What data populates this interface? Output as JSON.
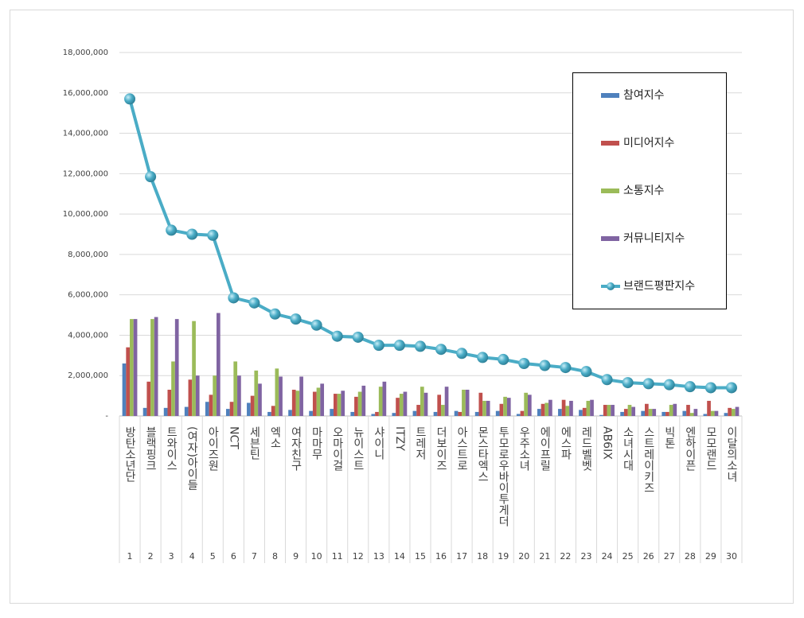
{
  "chart_data": {
    "type": "combo",
    "categories": [
      "방탄소년단",
      "블랙핑크",
      "트와이스",
      "(여자)아이들",
      "아이즈원",
      "NCT",
      "세븐틴",
      "엑소",
      "여자친구",
      "마마무",
      "오마이걸",
      "뉴이스트",
      "샤이니",
      "ITZY",
      "트레저",
      "더보이즈",
      "아스트로",
      "몬스타엑스",
      "투모로우바이투게더",
      "우주소녀",
      "에이프릴",
      "에스파",
      "레드벨벳",
      "AB6IX",
      "소녀시대",
      "스트레이키즈",
      "빅톤",
      "엔하이픈",
      "모모랜드",
      "이달의소녀"
    ],
    "ranks": [
      1,
      2,
      3,
      4,
      5,
      6,
      7,
      8,
      9,
      10,
      11,
      12,
      13,
      14,
      15,
      16,
      17,
      18,
      19,
      20,
      21,
      22,
      23,
      24,
      25,
      26,
      27,
      28,
      29,
      30
    ],
    "series": [
      {
        "name": "참여지수",
        "type": "bar",
        "color": "#4f81bd",
        "values": [
          2600000,
          400000,
          400000,
          450000,
          700000,
          350000,
          650000,
          200000,
          300000,
          250000,
          350000,
          200000,
          100000,
          150000,
          250000,
          200000,
          250000,
          200000,
          250000,
          100000,
          350000,
          350000,
          300000,
          50000,
          200000,
          250000,
          200000,
          250000,
          100000,
          150000
        ]
      },
      {
        "name": "미디어지수",
        "type": "bar",
        "color": "#c0504d",
        "values": [
          3400000,
          1700000,
          1300000,
          1800000,
          1050000,
          700000,
          1000000,
          500000,
          1300000,
          1200000,
          1100000,
          950000,
          200000,
          900000,
          550000,
          1050000,
          200000,
          1150000,
          600000,
          250000,
          600000,
          800000,
          400000,
          550000,
          350000,
          600000,
          200000,
          550000,
          750000,
          400000
        ]
      },
      {
        "name": "소통지수",
        "type": "bar",
        "color": "#9bbb59",
        "values": [
          4800000,
          4800000,
          2700000,
          4700000,
          2000000,
          2700000,
          2250000,
          2350000,
          1250000,
          1400000,
          1100000,
          1200000,
          1450000,
          1100000,
          1450000,
          550000,
          1300000,
          750000,
          950000,
          1150000,
          650000,
          500000,
          750000,
          550000,
          550000,
          350000,
          550000,
          150000,
          250000,
          350000
        ]
      },
      {
        "name": "커뮤니티지수",
        "type": "bar",
        "color": "#8064a2",
        "values": [
          4800000,
          4900000,
          4800000,
          2000000,
          5100000,
          2000000,
          1600000,
          1950000,
          1950000,
          1600000,
          1250000,
          1500000,
          1700000,
          1200000,
          1150000,
          1450000,
          1300000,
          750000,
          900000,
          1050000,
          800000,
          750000,
          800000,
          550000,
          450000,
          350000,
          600000,
          350000,
          250000,
          450000
        ]
      },
      {
        "name": "브랜드평판지수",
        "type": "line",
        "color": "#4aacc6",
        "values": [
          15700000,
          11850000,
          9200000,
          9000000,
          8950000,
          5850000,
          5600000,
          5050000,
          4800000,
          4500000,
          3950000,
          3900000,
          3500000,
          3500000,
          3450000,
          3300000,
          3100000,
          2900000,
          2800000,
          2600000,
          2500000,
          2400000,
          2200000,
          1800000,
          1650000,
          1600000,
          1550000,
          1450000,
          1400000,
          1400000
        ]
      }
    ],
    "ylim": [
      0,
      18000000
    ],
    "yticks": [
      {
        "value": 0,
        "label": "-"
      },
      {
        "value": 2000000,
        "label": "2,000,000"
      },
      {
        "value": 4000000,
        "label": "4,000,000"
      },
      {
        "value": 6000000,
        "label": "6,000,000"
      },
      {
        "value": 8000000,
        "label": "8,000,000"
      },
      {
        "value": 10000000,
        "label": "10,000,000"
      },
      {
        "value": 12000000,
        "label": "12,000,000"
      },
      {
        "value": 14000000,
        "label": "14,000,000"
      },
      {
        "value": 16000000,
        "label": "16,000,000"
      },
      {
        "value": 18000000,
        "label": "18,000,000"
      }
    ],
    "grid": true,
    "legend_position": "upper right"
  }
}
